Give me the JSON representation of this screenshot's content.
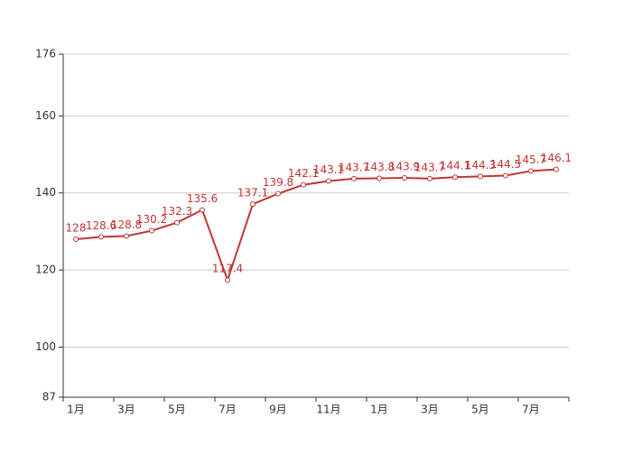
{
  "chart_data": {
    "type": "line",
    "categories": [
      "1月",
      null,
      "3月",
      null,
      "5月",
      null,
      "7月",
      null,
      "9月",
      null,
      "11月",
      null,
      "1月",
      null,
      "3月",
      null,
      "5月",
      null,
      "7月",
      null
    ],
    "series": [
      {
        "color": "#c23531",
        "values": [
          128,
          128.6,
          128.8,
          130.2,
          132.3,
          135.6,
          117.4,
          137.1,
          139.8,
          142.1,
          143.1,
          143.7,
          143.8,
          143.9,
          143.7,
          144.1,
          144.3,
          144.5,
          145.7,
          146.1
        ]
      }
    ],
    "ylim": [
      87,
      176
    ],
    "yticks": [
      87,
      100,
      120,
      140,
      160,
      176
    ],
    "grid": true
  }
}
